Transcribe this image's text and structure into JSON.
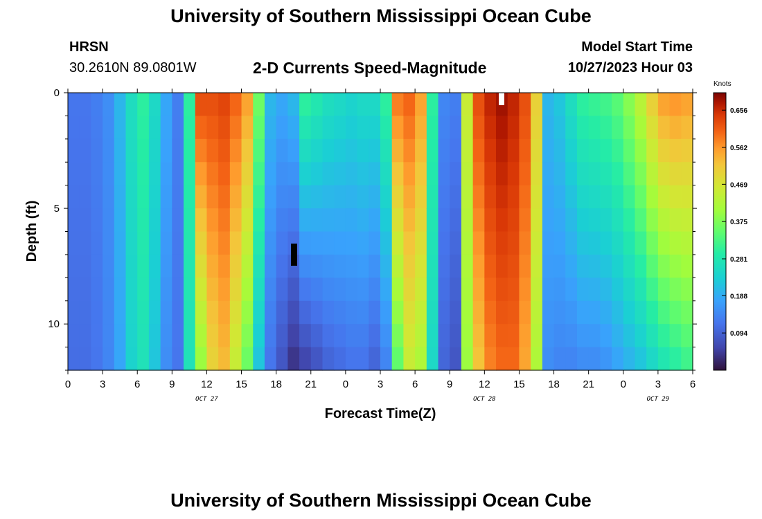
{
  "page": {
    "title_top": "University of Southern Mississippi Ocean Cube",
    "title_bottom": "University of Southern Mississippi Ocean Cube",
    "station": "HRSN",
    "coords": "30.2610N  89.0801W",
    "model_start_label": "Model Start Time",
    "model_start_value": "10/27/2023 Hour 03"
  },
  "chart_data": {
    "type": "heatmap",
    "title": "2-D Currents Speed-Magnitude",
    "xlabel": "Forecast Time(Z)",
    "ylabel": "Depth (ft)",
    "x_hours": [
      0,
      54
    ],
    "y_depth_ft": [
      0,
      12
    ],
    "x_tick_labels": [
      "0",
      "3",
      "6",
      "9",
      "12",
      "15",
      "18",
      "21",
      "0",
      "3",
      "6",
      "9",
      "12",
      "15",
      "18",
      "21",
      "0",
      "3",
      "6"
    ],
    "y_tick_labels": [
      "0",
      "5",
      "10"
    ],
    "y_tick_values": [
      0,
      5,
      10
    ],
    "date_labels": [
      {
        "text": "OCT 27",
        "hour": 12
      },
      {
        "text": "OCT 28",
        "hour": 36
      },
      {
        "text": "OCT 29",
        "hour": 51
      }
    ],
    "colorbar": {
      "unit": "Knots",
      "min": 0,
      "max": 0.7,
      "tick_labels": [
        "0.656",
        "0.562",
        "0.469",
        "0.375",
        "0.281",
        "0.188",
        "0.094"
      ],
      "tick_values": [
        0.656,
        0.562,
        0.469,
        0.375,
        0.281,
        0.188,
        0.094
      ]
    },
    "depth_levels_ft": [
      0.5,
      1.5,
      2.5,
      3.5,
      4.5,
      5.5,
      6.5,
      7.5,
      8.5,
      9.5,
      10.5,
      11.5
    ],
    "speed_profile_hourly": [
      {
        "h": 0,
        "s": 0.12,
        "b": 0.11
      },
      {
        "h": 1,
        "s": 0.12,
        "b": 0.11
      },
      {
        "h": 2,
        "s": 0.13,
        "b": 0.12
      },
      {
        "h": 3,
        "s": 0.15,
        "b": 0.14
      },
      {
        "h": 4,
        "s": 0.2,
        "b": 0.18
      },
      {
        "h": 5,
        "s": 0.26,
        "b": 0.24
      },
      {
        "h": 6,
        "s": 0.3,
        "b": 0.27
      },
      {
        "h": 7,
        "s": 0.25,
        "b": 0.22
      },
      {
        "h": 8,
        "s": 0.18,
        "b": 0.15
      },
      {
        "h": 9,
        "s": 0.13,
        "b": 0.12
      },
      {
        "h": 10,
        "s": 0.3,
        "b": 0.27
      },
      {
        "h": 11,
        "s": 0.62,
        "b": 0.4
      },
      {
        "h": 12,
        "s": 0.62,
        "b": 0.5
      },
      {
        "h": 13,
        "s": 0.63,
        "b": 0.53
      },
      {
        "h": 14,
        "s": 0.6,
        "b": 0.45
      },
      {
        "h": 15,
        "s": 0.55,
        "b": 0.36
      },
      {
        "h": 16,
        "s": 0.36,
        "b": 0.22
      },
      {
        "h": 17,
        "s": 0.2,
        "b": 0.12
      },
      {
        "h": 18,
        "s": 0.18,
        "b": 0.08
      },
      {
        "h": 19,
        "s": 0.2,
        "b": 0.04
      },
      {
        "h": 20,
        "s": 0.3,
        "b": 0.06
      },
      {
        "h": 21,
        "s": 0.28,
        "b": 0.08
      },
      {
        "h": 22,
        "s": 0.26,
        "b": 0.1
      },
      {
        "h": 23,
        "s": 0.25,
        "b": 0.11
      },
      {
        "h": 24,
        "s": 0.24,
        "b": 0.12
      },
      {
        "h": 25,
        "s": 0.25,
        "b": 0.12
      },
      {
        "h": 26,
        "s": 0.25,
        "b": 0.1
      },
      {
        "h": 27,
        "s": 0.3,
        "b": 0.14
      },
      {
        "h": 28,
        "s": 0.58,
        "b": 0.35
      },
      {
        "h": 29,
        "s": 0.6,
        "b": 0.45
      },
      {
        "h": 30,
        "s": 0.55,
        "b": 0.42
      },
      {
        "h": 31,
        "s": 0.3,
        "b": 0.25
      },
      {
        "h": 32,
        "s": 0.14,
        "b": 0.1
      },
      {
        "h": 33,
        "s": 0.13,
        "b": 0.08
      },
      {
        "h": 34,
        "s": 0.45,
        "b": 0.4
      },
      {
        "h": 35,
        "s": 0.62,
        "b": 0.52
      },
      {
        "h": 36,
        "s": 0.66,
        "b": 0.58
      },
      {
        "h": 37,
        "s": 0.68,
        "b": 0.6
      },
      {
        "h": 38,
        "s": 0.66,
        "b": 0.6
      },
      {
        "h": 39,
        "s": 0.62,
        "b": 0.55
      },
      {
        "h": 40,
        "s": 0.5,
        "b": 0.42
      },
      {
        "h": 41,
        "s": 0.2,
        "b": 0.15
      },
      {
        "h": 42,
        "s": 0.22,
        "b": 0.14
      },
      {
        "h": 43,
        "s": 0.26,
        "b": 0.14
      },
      {
        "h": 44,
        "s": 0.3,
        "b": 0.15
      },
      {
        "h": 45,
        "s": 0.31,
        "b": 0.15
      },
      {
        "h": 46,
        "s": 0.32,
        "b": 0.16
      },
      {
        "h": 47,
        "s": 0.34,
        "b": 0.18
      },
      {
        "h": 48,
        "s": 0.38,
        "b": 0.2
      },
      {
        "h": 49,
        "s": 0.43,
        "b": 0.22
      },
      {
        "h": 50,
        "s": 0.5,
        "b": 0.25
      },
      {
        "h": 51,
        "s": 0.55,
        "b": 0.28
      },
      {
        "h": 52,
        "s": 0.56,
        "b": 0.3
      },
      {
        "h": 53,
        "s": 0.55,
        "b": 0.32
      }
    ]
  }
}
